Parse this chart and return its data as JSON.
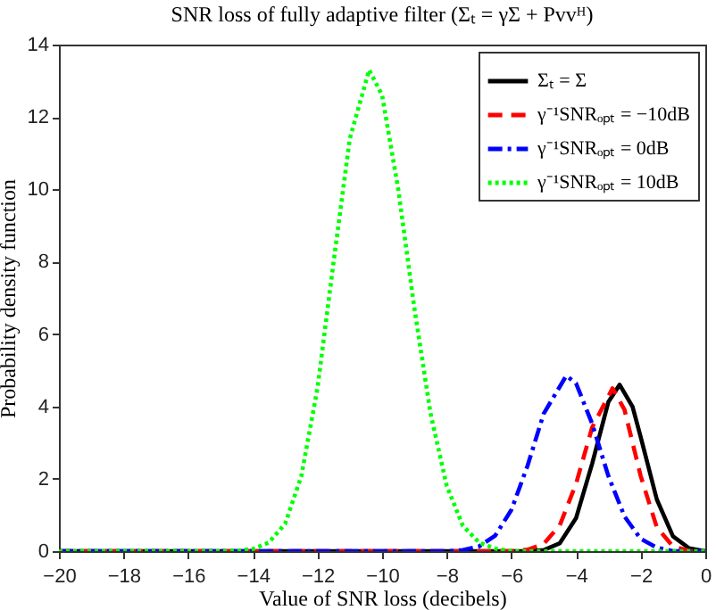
{
  "chart_data": {
    "type": "line",
    "title": "SNR loss of fully adaptive filter (Σₜ = γΣ + Pvvᴴ)",
    "xlabel": "Value of SNR loss (decibels)",
    "ylabel": "Probability density function",
    "xlim": [
      -20,
      0
    ],
    "xticks": [
      -20,
      -18,
      -16,
      -14,
      -12,
      -10,
      -8,
      -6,
      -4,
      -2,
      0
    ],
    "ylim": [
      0,
      14
    ],
    "yticks": [
      0,
      2,
      4,
      6,
      8,
      10,
      12,
      14
    ],
    "grid": false,
    "legend": "top right",
    "marker": "none",
    "series": [
      {
        "name": "Σₜ = Σ",
        "color": "#000000",
        "line_style": "solid",
        "x": [
          -20,
          -5.5,
          -5,
          -4.5,
          -4,
          -3.5,
          -3,
          -2.65,
          -2.25,
          -2,
          -1.5,
          -1,
          -0.5,
          0
        ],
        "values": [
          0,
          0,
          0.03,
          0.22,
          0.91,
          2.42,
          4.12,
          4.6,
          3.99,
          3.16,
          1.43,
          0.41,
          0.08,
          0
        ]
      },
      {
        "name": "γ⁻¹SNRₒₚₜ = −10dB",
        "color": "#ff0000",
        "line_style": "dashed",
        "x": [
          -20,
          -6,
          -5.5,
          -5,
          -4.5,
          -4,
          -3.5,
          -2.87,
          -2.5,
          -2,
          -1.5,
          -1,
          -0.5,
          0
        ],
        "values": [
          0,
          0,
          0.04,
          0.2,
          0.72,
          1.86,
          3.42,
          4.5,
          3.91,
          2.08,
          0.66,
          0.13,
          0.01,
          0
        ]
      },
      {
        "name": "γ⁻¹SNRₒₚₜ = 0dB",
        "color": "#0000ff",
        "line_style": "dashdot",
        "x": [
          -20,
          -8,
          -7.5,
          -7,
          -6.5,
          -6,
          -5.5,
          -5,
          -4.3,
          -4,
          -3.5,
          -3,
          -2.5,
          -2,
          -1.5,
          -1,
          0
        ],
        "values": [
          0,
          0,
          0.03,
          0.13,
          0.43,
          1.14,
          2.36,
          3.8,
          4.85,
          4.64,
          3.52,
          2.08,
          0.96,
          0.34,
          0.1,
          0,
          0
        ]
      },
      {
        "name": "γ⁻¹SNRₒₚₜ = 10dB",
        "color": "#00ff00",
        "line_style": "dotted",
        "x": [
          -20,
          -15,
          -14.5,
          -14,
          -13.5,
          -13,
          -12.5,
          -12,
          -11.5,
          -11,
          -10.4,
          -10,
          -9.5,
          -9,
          -8.5,
          -8,
          -7.5,
          -7,
          -6.5,
          -6,
          0
        ],
        "values": [
          0,
          0,
          0.01,
          0.06,
          0.24,
          0.76,
          2.07,
          4.5,
          8.0,
          11.4,
          13.3,
          12.6,
          10.0,
          6.7,
          3.8,
          1.8,
          0.7,
          0.24,
          0.07,
          0,
          0
        ]
      }
    ]
  }
}
